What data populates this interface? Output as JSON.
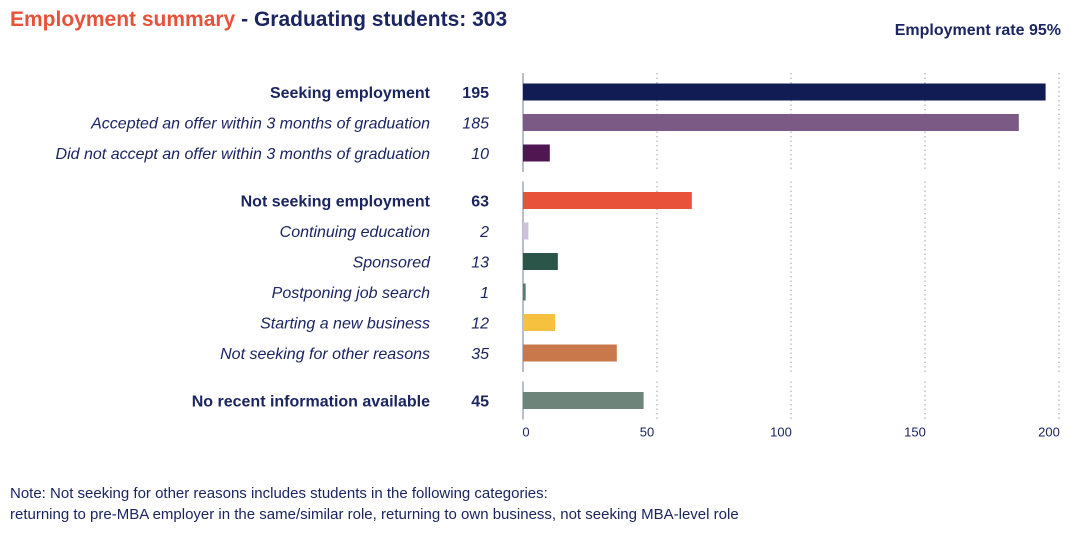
{
  "header": {
    "title": "Employment summary",
    "separator": "-",
    "subtitle": "Graduating students: 303",
    "rate": "Employment rate 95%"
  },
  "note": {
    "line1": "Note: Not seeking for other reasons includes students in the following categories:",
    "line2": "returning to pre-MBA employer in the same/similar role, returning to own business, not seeking MBA-level role"
  },
  "chart_data": {
    "type": "bar",
    "orientation": "horizontal",
    "xlim": [
      0,
      200
    ],
    "xticks": [
      0,
      50,
      100,
      150,
      200
    ],
    "grid": "vertical dotted",
    "rows": [
      {
        "label": "Seeking employment",
        "value": 195,
        "value_label": "195",
        "style": "bold",
        "color": "#121c54",
        "group": 0
      },
      {
        "label": "Accepted an offer within 3 months of graduation",
        "value": 185,
        "value_label": "185",
        "style": "italic",
        "color": "#7b5a85",
        "group": 0
      },
      {
        "label": "Did not accept an offer within 3 months of graduation",
        "value": 10,
        "value_label": "10",
        "style": "italic",
        "color": "#4f1652",
        "group": 0
      },
      {
        "label": "Not seeking employment",
        "value": 63,
        "value_label": "63",
        "style": "bold",
        "color": "#e8523a",
        "group": 1
      },
      {
        "label": "Continuing education",
        "value": 2,
        "value_label": "2",
        "style": "italic",
        "color": "#cfc1dc",
        "group": 1
      },
      {
        "label": "Sponsored",
        "value": 13,
        "value_label": "13",
        "style": "italic",
        "color": "#2b5548",
        "group": 1
      },
      {
        "label": "Postponing job search",
        "value": 1,
        "value_label": "1",
        "style": "italic",
        "color": "#5b7a72",
        "group": 1
      },
      {
        "label": "Starting a new business",
        "value": 12,
        "value_label": "12",
        "style": "italic",
        "color": "#f6c13e",
        "group": 1
      },
      {
        "label": "Not seeking for other reasons",
        "value": 35,
        "value_label": "35",
        "style": "italic",
        "color": "#c8784b",
        "group": 1
      },
      {
        "label": "No recent information available",
        "value": 45,
        "value_label": "45",
        "style": "bold",
        "color": "#6c8479",
        "group": 2
      }
    ]
  }
}
